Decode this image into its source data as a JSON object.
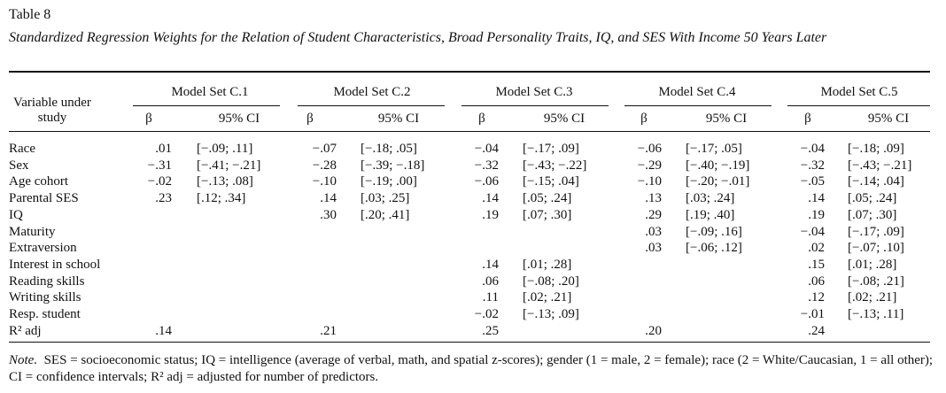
{
  "table_label": "Table 8",
  "title": "Standardized Regression Weights for the Relation of Student Characteristics, Broad Personality Traits, IQ, and SES With Income 50 Years Later",
  "table": {
    "stub_header": "Variable under study",
    "model_sets": [
      "Model Set C.1",
      "Model Set C.2",
      "Model Set C.3",
      "Model Set C.4",
      "Model Set C.5"
    ],
    "column_headers": [
      "β",
      "95% CI"
    ],
    "rows": [
      {
        "label": "Race",
        "cells": [
          ".01",
          "[−.09; .11]",
          "−.07",
          "[−.18; .05]",
          "−.04",
          "[−.17; .09]",
          "−.06",
          "[−.17; .05]",
          "−.04",
          "[−.18; .09]"
        ]
      },
      {
        "label": "Sex",
        "cells": [
          "−.31",
          "[−.41; −.21]",
          "−.28",
          "[−.39; −.18]",
          "−.32",
          "[−.43; −.22]",
          "−.29",
          "[−.40; −.19]",
          "−.32",
          "[−.43; −.21]"
        ]
      },
      {
        "label": "Age cohort",
        "cells": [
          "−.02",
          "[−.13; .08]",
          "−.10",
          "[−.19; .00]",
          "−.06",
          "[−.15; .04]",
          "−.10",
          "[−.20; −.01]",
          "−.05",
          "[−.14; .04]"
        ]
      },
      {
        "label": "Parental SES",
        "cells": [
          ".23",
          "[.12; .34]",
          ".14",
          "[.03; .25]",
          ".14",
          "[.05; .24]",
          ".13",
          "[.03; .24]",
          ".14",
          "[.05; .24]"
        ]
      },
      {
        "label": "IQ",
        "cells": [
          null,
          null,
          ".30",
          "[.20; .41]",
          ".19",
          "[.07; .30]",
          ".29",
          "[.19; .40]",
          ".19",
          "[.07; .30]"
        ]
      },
      {
        "label": "Maturity",
        "cells": [
          null,
          null,
          null,
          null,
          null,
          null,
          ".03",
          "[−.09; .16]",
          "−.04",
          "[−.17; .09]"
        ]
      },
      {
        "label": "Extraversion",
        "cells": [
          null,
          null,
          null,
          null,
          null,
          null,
          ".03",
          "[−.06; .12]",
          ".02",
          "[−.07; .10]"
        ]
      },
      {
        "label": "Interest in school",
        "cells": [
          null,
          null,
          null,
          null,
          ".14",
          "[.01; .28]",
          null,
          null,
          ".15",
          "[.01; .28]"
        ]
      },
      {
        "label": "Reading skills",
        "cells": [
          null,
          null,
          null,
          null,
          ".06",
          "[−.08; .20]",
          null,
          null,
          ".06",
          "[−.08; .21]"
        ]
      },
      {
        "label": "Writing skills",
        "cells": [
          null,
          null,
          null,
          null,
          ".11",
          "[.02; .21]",
          null,
          null,
          ".12",
          "[.02; .21]"
        ]
      },
      {
        "label": "Resp. student",
        "cells": [
          null,
          null,
          null,
          null,
          "−.02",
          "[−.13; .09]",
          null,
          null,
          "−.01",
          "[−.13; .11]"
        ]
      },
      {
        "label": "R² adj",
        "cells": [
          ".14",
          null,
          ".21",
          null,
          ".25",
          null,
          ".20",
          null,
          ".24",
          null
        ]
      }
    ]
  },
  "note": {
    "label": "Note.",
    "text": "SES = socioeconomic status; IQ = intelligence (average of verbal, math, and spatial z-scores); gender (1 = male, 2 = female); race (2 = White/Caucasian, 1 = all other); CI = confidence intervals; R² adj = adjusted for number of predictors."
  }
}
